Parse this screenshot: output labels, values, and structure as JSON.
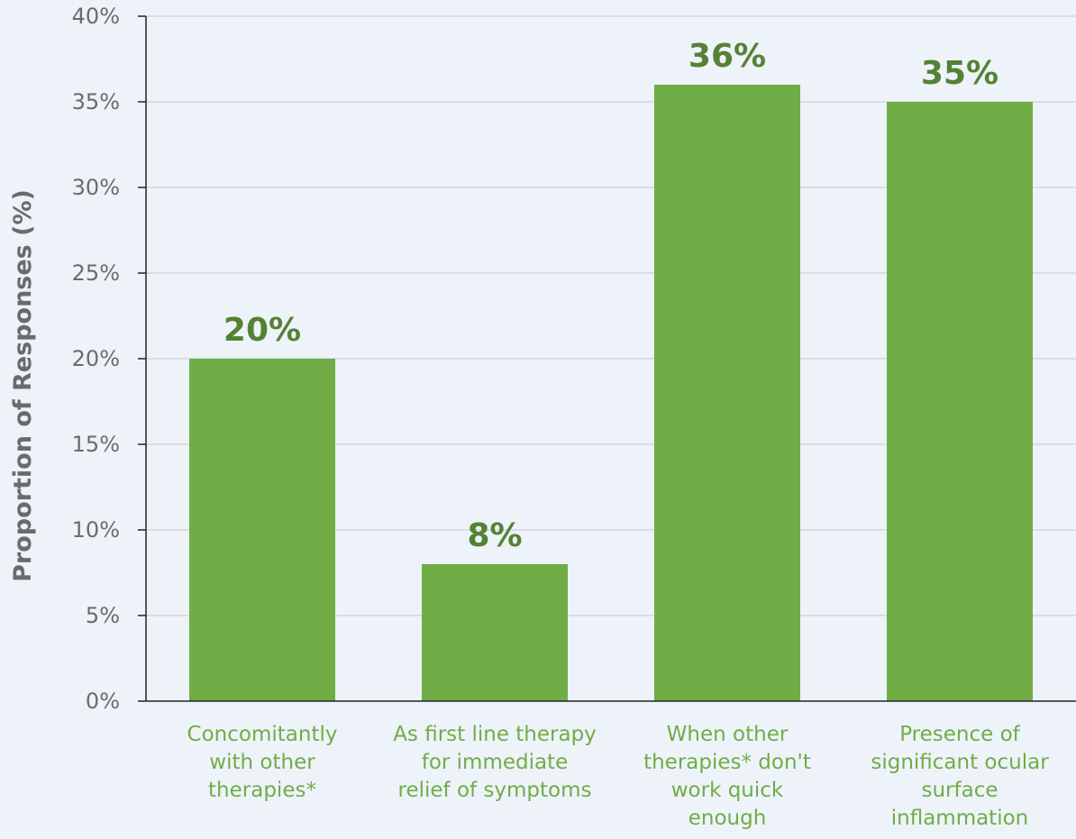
{
  "chart_data": {
    "type": "bar",
    "categories": [
      [
        "Concomitantly",
        "with other",
        "therapies*"
      ],
      [
        "As first line therapy",
        "for immediate",
        "relief of symptoms"
      ],
      [
        "When other",
        "therapies* don't",
        "work quick",
        "enough"
      ],
      [
        "Presence of",
        "significant ocular",
        "surface",
        "inflammation"
      ]
    ],
    "values": [
      20,
      8,
      36,
      35
    ],
    "data_labels": [
      "20%",
      "8%",
      "36%",
      "35%"
    ],
    "title": "",
    "xlabel": "",
    "ylabel": "Proportion of Responses (%)",
    "ylim": [
      0,
      40
    ],
    "yticks": [
      0,
      5,
      10,
      15,
      20,
      25,
      30,
      35,
      40
    ],
    "ytick_labels": [
      "0%",
      "5%",
      "10%",
      "15%",
      "20%",
      "25%",
      "30%",
      "35%",
      "40%"
    ],
    "grid": "horizontal",
    "legend": "none",
    "colors": {
      "bar": "#70ad47",
      "data_label": "#548235",
      "category_label": "#70ad47",
      "axis": "#222222",
      "grid": "#d3d7dc",
      "tick_text": "#6b6b6b",
      "background": "#eef3fa"
    }
  }
}
